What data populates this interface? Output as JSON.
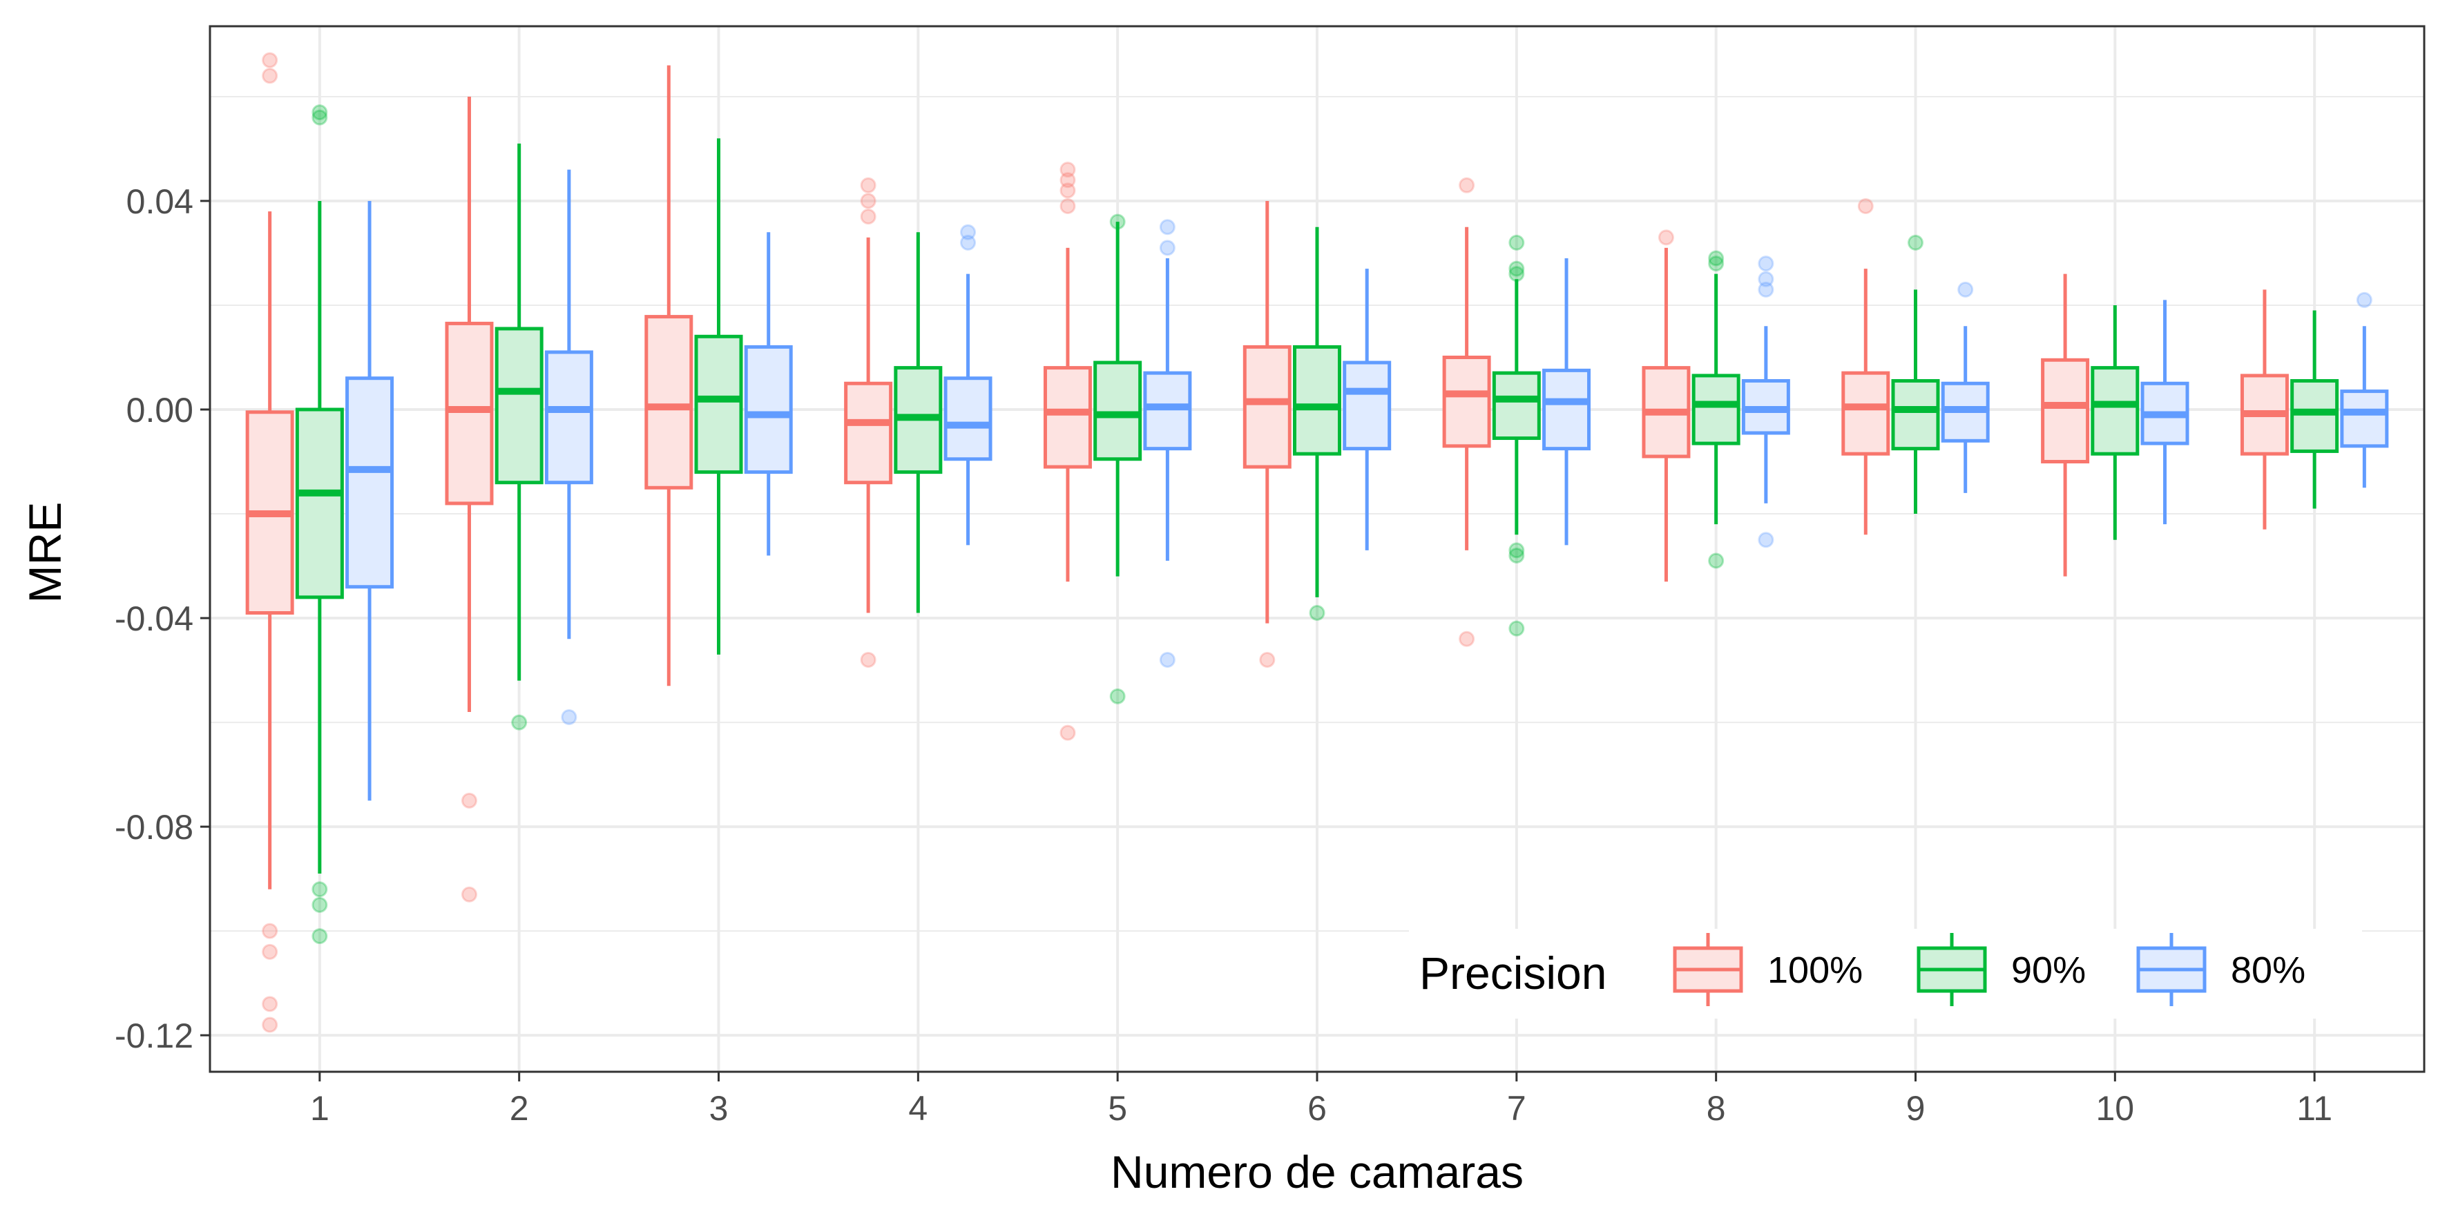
{
  "chart_data": {
    "type": "boxplot",
    "xlabel": "Numero de camaras",
    "ylabel": "MRE",
    "categories": [
      "1",
      "2",
      "3",
      "4",
      "5",
      "6",
      "7",
      "8",
      "9",
      "10",
      "11"
    ],
    "ylim": [
      -0.127,
      0.0735
    ],
    "yticks": [
      0.04,
      0.0,
      -0.04,
      -0.08,
      -0.12
    ],
    "ytick_labels": [
      "0.04",
      "0.00",
      "-0.04",
      "-0.08",
      "-0.12"
    ],
    "grid": true,
    "legend": {
      "title": "Precision",
      "position": "bottom-right"
    },
    "series": [
      {
        "name": "100%",
        "color": "#F8766D",
        "fill": "#FDE3E1",
        "boxes": [
          {
            "q1": -0.039,
            "median": -0.02,
            "q3": -0.0005,
            "low": -0.092,
            "high": 0.038,
            "outliers": [
              0.067,
              0.064,
              -0.1,
              -0.104,
              -0.114,
              -0.118
            ]
          },
          {
            "q1": -0.018,
            "median": 0.0,
            "q3": 0.0165,
            "low": -0.058,
            "high": 0.06,
            "outliers": [
              -0.075,
              -0.093
            ]
          },
          {
            "q1": -0.015,
            "median": 0.0005,
            "q3": 0.0178,
            "low": -0.053,
            "high": 0.066,
            "outliers": []
          },
          {
            "q1": -0.014,
            "median": -0.0025,
            "q3": 0.005,
            "low": -0.039,
            "high": 0.033,
            "outliers": [
              0.043,
              0.04,
              0.037,
              -0.048
            ]
          },
          {
            "q1": -0.011,
            "median": -0.0005,
            "q3": 0.008,
            "low": -0.033,
            "high": 0.031,
            "outliers": [
              0.046,
              0.044,
              0.042,
              0.039,
              -0.062
            ]
          },
          {
            "q1": -0.011,
            "median": 0.0015,
            "q3": 0.012,
            "low": -0.041,
            "high": 0.04,
            "outliers": [
              -0.048
            ]
          },
          {
            "q1": -0.007,
            "median": 0.003,
            "q3": 0.01,
            "low": -0.027,
            "high": 0.035,
            "outliers": [
              0.043,
              -0.044
            ]
          },
          {
            "q1": -0.009,
            "median": -0.0005,
            "q3": 0.008,
            "low": -0.033,
            "high": 0.031,
            "outliers": [
              0.033
            ]
          },
          {
            "q1": -0.0085,
            "median": 0.0005,
            "q3": 0.007,
            "low": -0.024,
            "high": 0.027,
            "outliers": [
              0.039
            ]
          },
          {
            "q1": -0.01,
            "median": 0.0008,
            "q3": 0.0095,
            "low": -0.032,
            "high": 0.026,
            "outliers": []
          },
          {
            "q1": -0.0085,
            "median": -0.0008,
            "q3": 0.0065,
            "low": -0.023,
            "high": 0.023,
            "outliers": []
          }
        ]
      },
      {
        "name": "90%",
        "color": "#00BA38",
        "fill": "#CFF1D9",
        "boxes": [
          {
            "q1": -0.036,
            "median": -0.016,
            "q3": 0.0,
            "low": -0.089,
            "high": 0.04,
            "outliers": [
              0.057,
              0.056,
              -0.092,
              -0.095,
              -0.101
            ]
          },
          {
            "q1": -0.014,
            "median": 0.0035,
            "q3": 0.0155,
            "low": -0.052,
            "high": 0.051,
            "outliers": [
              -0.06
            ]
          },
          {
            "q1": -0.012,
            "median": 0.002,
            "q3": 0.014,
            "low": -0.047,
            "high": 0.052,
            "outliers": []
          },
          {
            "q1": -0.012,
            "median": -0.0015,
            "q3": 0.008,
            "low": -0.039,
            "high": 0.034,
            "outliers": []
          },
          {
            "q1": -0.0095,
            "median": -0.001,
            "q3": 0.009,
            "low": -0.032,
            "high": 0.036,
            "outliers": [
              0.036,
              -0.055
            ]
          },
          {
            "q1": -0.0085,
            "median": 0.0005,
            "q3": 0.012,
            "low": -0.036,
            "high": 0.035,
            "outliers": [
              -0.039
            ]
          },
          {
            "q1": -0.0055,
            "median": 0.002,
            "q3": 0.007,
            "low": -0.024,
            "high": 0.025,
            "outliers": [
              0.032,
              0.027,
              0.026,
              -0.027,
              -0.028,
              -0.042
            ]
          },
          {
            "q1": -0.0065,
            "median": 0.001,
            "q3": 0.0065,
            "low": -0.022,
            "high": 0.026,
            "outliers": [
              0.028,
              0.029,
              -0.029
            ]
          },
          {
            "q1": -0.0075,
            "median": 0.0,
            "q3": 0.0055,
            "low": -0.02,
            "high": 0.023,
            "outliers": [
              0.032
            ]
          },
          {
            "q1": -0.0085,
            "median": 0.001,
            "q3": 0.008,
            "low": -0.025,
            "high": 0.02,
            "outliers": []
          },
          {
            "q1": -0.008,
            "median": -0.0005,
            "q3": 0.0055,
            "low": -0.019,
            "high": 0.019,
            "outliers": []
          }
        ]
      },
      {
        "name": "80%",
        "color": "#619CFF",
        "fill": "#E0EBFF",
        "boxes": [
          {
            "q1": -0.034,
            "median": -0.0115,
            "q3": 0.006,
            "low": -0.075,
            "high": 0.04,
            "outliers": []
          },
          {
            "q1": -0.014,
            "median": 0.0,
            "q3": 0.011,
            "low": -0.044,
            "high": 0.046,
            "outliers": [
              -0.059
            ]
          },
          {
            "q1": -0.012,
            "median": -0.001,
            "q3": 0.012,
            "low": -0.028,
            "high": 0.034,
            "outliers": []
          },
          {
            "q1": -0.0095,
            "median": -0.003,
            "q3": 0.006,
            "low": -0.026,
            "high": 0.026,
            "outliers": [
              0.034,
              0.032
            ]
          },
          {
            "q1": -0.0075,
            "median": 0.0005,
            "q3": 0.007,
            "low": -0.029,
            "high": 0.029,
            "outliers": [
              0.035,
              0.031,
              -0.048
            ]
          },
          {
            "q1": -0.0075,
            "median": 0.0035,
            "q3": 0.009,
            "low": -0.027,
            "high": 0.027,
            "outliers": []
          },
          {
            "q1": -0.0075,
            "median": 0.0015,
            "q3": 0.0075,
            "low": -0.026,
            "high": 0.029,
            "outliers": []
          },
          {
            "q1": -0.0045,
            "median": 0.0,
            "q3": 0.0055,
            "low": -0.018,
            "high": 0.016,
            "outliers": [
              0.028,
              0.025,
              0.023,
              -0.025
            ]
          },
          {
            "q1": -0.006,
            "median": 0.0,
            "q3": 0.005,
            "low": -0.016,
            "high": 0.016,
            "outliers": [
              0.023
            ]
          },
          {
            "q1": -0.0065,
            "median": -0.001,
            "q3": 0.005,
            "low": -0.022,
            "high": 0.021,
            "outliers": []
          },
          {
            "q1": -0.007,
            "median": -0.0005,
            "q3": 0.0035,
            "low": -0.015,
            "high": 0.016,
            "outliers": [
              0.021
            ]
          }
        ]
      }
    ]
  }
}
